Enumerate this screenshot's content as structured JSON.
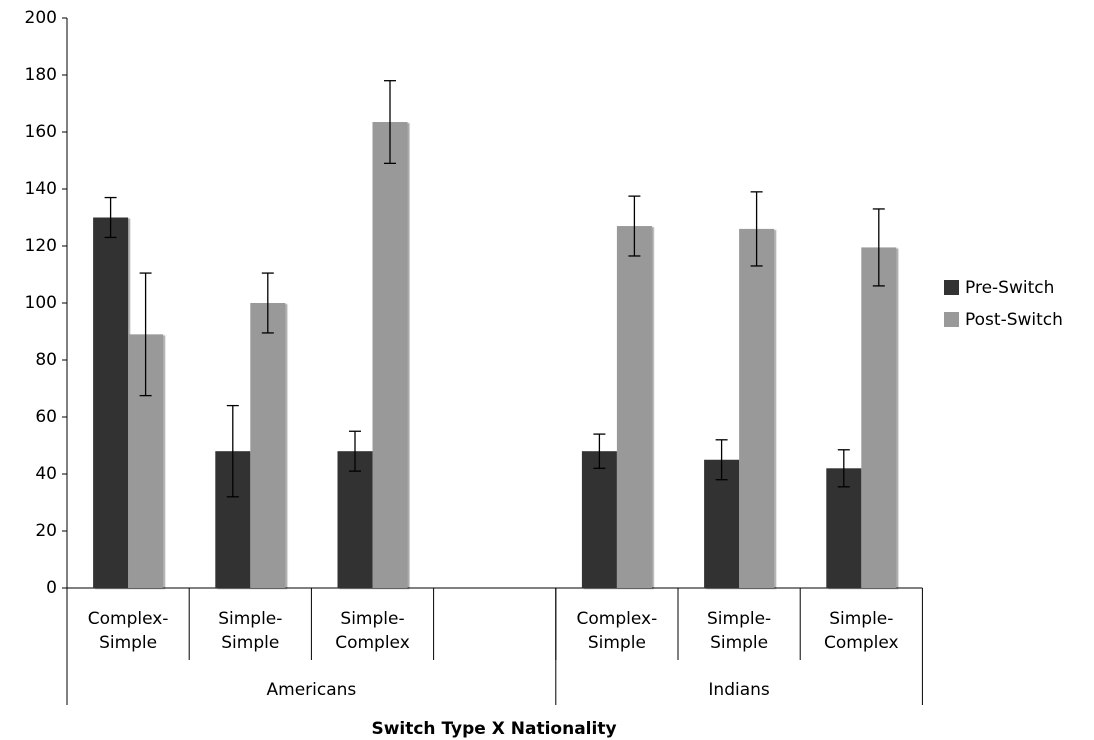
{
  "chart_data": {
    "type": "bar",
    "x_label": "Switch Type X Nationality",
    "category_groups": [
      {
        "name": "Americans",
        "categories": [
          "Complex-Simple",
          "Simple-Simple",
          "Simple-Complex",
          null
        ]
      },
      {
        "name": "Indians",
        "categories": [
          "Complex-Simple",
          "Simple-Simple",
          "Simple-Complex"
        ]
      }
    ],
    "series": [
      {
        "name": "Pre-Switch",
        "color": "#333333",
        "values": [
          130,
          48,
          48,
          null,
          48,
          45,
          42
        ],
        "errors": [
          7,
          16,
          7,
          null,
          6,
          7,
          6.5
        ]
      },
      {
        "name": "Post-Switch",
        "color": "#999999",
        "values": [
          89,
          100,
          163.5,
          null,
          127,
          126,
          119.5
        ],
        "errors": [
          21.5,
          10.5,
          14.5,
          null,
          10.5,
          13,
          13.5
        ]
      }
    ],
    "ylim": [
      0,
      200
    ],
    "yticks": [
      0,
      20,
      40,
      60,
      80,
      100,
      120,
      140,
      160,
      180,
      200
    ],
    "grid": false,
    "legend": "right"
  }
}
